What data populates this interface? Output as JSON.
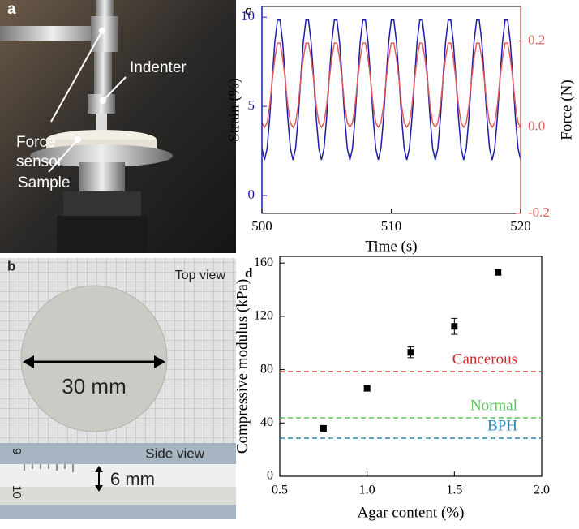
{
  "panel_labels": [
    "a",
    "b",
    "c",
    "d"
  ],
  "photo_a": {
    "force_sensor": [
      "Force",
      "sensor"
    ],
    "indenter": "Indenter",
    "sample": "Sample"
  },
  "photo_b": {
    "top_view": "Top view",
    "diameter": "30 mm",
    "side_view": "Side view",
    "thickness": "6 mm",
    "ruler_labels": [
      "9",
      "10"
    ]
  },
  "chart_data": [
    {
      "type": "line",
      "xlabel": "Time (s)",
      "ylabel": "Strain (%)",
      "y2label": "Force (N)",
      "xlim": [
        500,
        520
      ],
      "xticks": [
        500,
        510,
        520
      ],
      "ylim": [
        -1,
        10.6
      ],
      "yticks": [
        0,
        5,
        10
      ],
      "y2lim": [
        -0.2,
        0.28
      ],
      "y2ticks": [
        {
          "value": -0.2,
          "label": "-0.2"
        },
        {
          "value": 0,
          "label": "0.0"
        },
        0.2
      ],
      "x": [
        500,
        500.2,
        500.4,
        500.6,
        500.8,
        501,
        501.2,
        501.4,
        501.6,
        501.8,
        502,
        502.2,
        502.4,
        502.6,
        502.8,
        503,
        503.2,
        503.4,
        503.6,
        503.8,
        504,
        504.2,
        504.4,
        504.6,
        504.8,
        505,
        505.2,
        505.4,
        505.6,
        505.8,
        506,
        506.2,
        506.4,
        506.6,
        506.8,
        507,
        507.2,
        507.4,
        507.6,
        507.8,
        508,
        508.2,
        508.4,
        508.6,
        508.8,
        509,
        509.2,
        509.4,
        509.6,
        509.8,
        510,
        510.2,
        510.4,
        510.6,
        510.8,
        511,
        511.2,
        511.4,
        511.6,
        511.8,
        512,
        512.2,
        512.4,
        512.6,
        512.8,
        513,
        513.2,
        513.4,
        513.6,
        513.8,
        514,
        514.2,
        514.4,
        514.6,
        514.8,
        515,
        515.2,
        515.4,
        515.6,
        515.8,
        516,
        516.2,
        516.4,
        516.6,
        516.8,
        517,
        517.2,
        517.4,
        517.6,
        517.8,
        518,
        518.2,
        518.4,
        518.6,
        518.8,
        519,
        519.2,
        519.4,
        519.6,
        519.8,
        520
      ],
      "series": [
        {
          "color": "#1c1ca8",
          "axis": "y",
          "values": [
            2.64,
            2.0,
            2.64,
            4.34,
            6.57,
            8.62,
            9.84,
            9.84,
            8.62,
            6.57,
            4.34,
            2.64,
            2.0,
            2.64,
            4.34,
            6.57,
            8.62,
            9.84,
            9.84,
            8.62,
            6.57,
            4.34,
            2.64,
            2.0,
            2.64,
            4.34,
            6.57,
            8.62,
            9.84,
            9.84,
            8.62,
            6.57,
            4.34,
            2.64,
            2.0,
            2.64,
            4.34,
            6.57,
            8.62,
            9.84,
            9.84,
            8.62,
            6.57,
            4.34,
            2.64,
            2.0,
            2.64,
            4.34,
            6.57,
            8.62,
            9.84,
            9.84,
            8.62,
            6.57,
            4.34,
            2.64,
            2.0,
            2.64,
            4.34,
            6.57,
            8.62,
            9.84,
            9.84,
            8.62,
            6.57,
            4.34,
            2.64,
            2.0,
            2.64,
            4.34,
            6.57,
            8.62,
            9.84,
            9.84,
            8.62,
            6.57,
            4.34,
            2.64,
            2.0,
            2.64,
            4.34,
            6.57,
            8.62,
            9.84,
            9.84,
            8.62,
            6.57,
            4.34,
            2.64,
            2.0,
            2.64,
            4.34,
            6.57,
            8.62,
            9.84,
            9.84,
            8.62,
            6.57,
            4.34,
            2.64,
            2.0
          ]
        },
        {
          "color": "#e05a5a",
          "axis": "y2",
          "values": [
            0.01,
            0,
            0.01,
            0.05,
            0.11,
            0.16,
            0.195,
            0.195,
            0.16,
            0.11,
            0.05,
            0.01,
            0,
            0.01,
            0.05,
            0.11,
            0.16,
            0.195,
            0.195,
            0.16,
            0.11,
            0.05,
            0.01,
            0,
            0.01,
            0.05,
            0.11,
            0.16,
            0.195,
            0.195,
            0.16,
            0.11,
            0.05,
            0.01,
            0,
            0.01,
            0.05,
            0.11,
            0.16,
            0.195,
            0.195,
            0.16,
            0.11,
            0.05,
            0.01,
            0,
            0.01,
            0.05,
            0.11,
            0.16,
            0.195,
            0.195,
            0.16,
            0.11,
            0.05,
            0.01,
            0,
            0.01,
            0.05,
            0.11,
            0.16,
            0.195,
            0.195,
            0.16,
            0.11,
            0.05,
            0.01,
            0,
            0.01,
            0.05,
            0.11,
            0.16,
            0.195,
            0.195,
            0.16,
            0.11,
            0.05,
            0.01,
            0,
            0.01,
            0.05,
            0.11,
            0.16,
            0.195,
            0.195,
            0.16,
            0.11,
            0.05,
            0.01,
            0,
            0.01,
            0.05,
            0.11,
            0.16,
            0.195,
            0.195,
            0.16,
            0.11,
            0.05,
            0.01,
            0
          ]
        }
      ]
    },
    {
      "type": "scatter",
      "xlabel": "Agar content (%)",
      "ylabel": "Compressive modulus (kPa)",
      "xlim": [
        0.5,
        2.0
      ],
      "xticks": [
        0.5,
        {
          "value": 1.0,
          "label": "1.0"
        },
        1.5,
        {
          "value": 2.0,
          "label": "2.0"
        }
      ],
      "ylim": [
        0,
        165
      ],
      "yticks": [
        0,
        40,
        80,
        120,
        160
      ],
      "x": [
        0.75,
        1.0,
        1.25,
        1.5,
        1.75
      ],
      "series": [
        {
          "color": "#000000",
          "values": [
            36,
            66,
            93,
            112.5,
            153
          ],
          "errors": [
            2,
            2,
            4,
            6,
            2
          ]
        }
      ],
      "reference_lines": [
        {
          "label": "Cancerous",
          "value": 78.5,
          "color": "#d62728"
        },
        {
          "label": "Normal",
          "value": 43.8,
          "color": "#5cc85c"
        },
        {
          "label": "BPH",
          "value": 28.6,
          "color": "#2a8ab8"
        }
      ]
    }
  ]
}
